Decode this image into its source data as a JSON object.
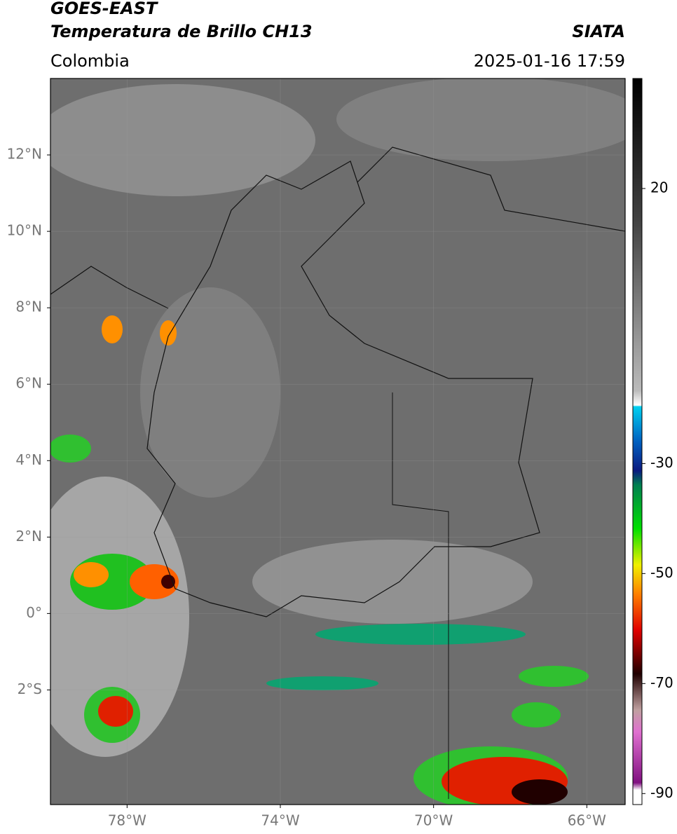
{
  "header": {
    "title": "GOES-EAST",
    "subtitle": "Temperatura de Brillo CH13",
    "source": "SIATA",
    "region": "Colombia",
    "datetime": "2025-01-16 17:59"
  },
  "map": {
    "xlim": [
      -80,
      -65
    ],
    "ylim": [
      -5,
      14
    ],
    "xticks": [
      {
        "value": -78,
        "label": "78°W"
      },
      {
        "value": -74,
        "label": "74°W"
      },
      {
        "value": -70,
        "label": "70°W"
      },
      {
        "value": -66,
        "label": "66°W"
      }
    ],
    "yticks": [
      {
        "value": 12,
        "label": "12°N"
      },
      {
        "value": 10,
        "label": "10°N"
      },
      {
        "value": 8,
        "label": "8°N"
      },
      {
        "value": 6,
        "label": "6°N"
      },
      {
        "value": 4,
        "label": "4°N"
      },
      {
        "value": 2,
        "label": "2°N"
      },
      {
        "value": 0,
        "label": "0°"
      },
      {
        "value": -2,
        "label": "2°S"
      }
    ]
  },
  "colorbar": {
    "lim": [
      -92,
      40
    ],
    "ticks": [
      20,
      -30,
      -50,
      -70,
      -90
    ]
  }
}
